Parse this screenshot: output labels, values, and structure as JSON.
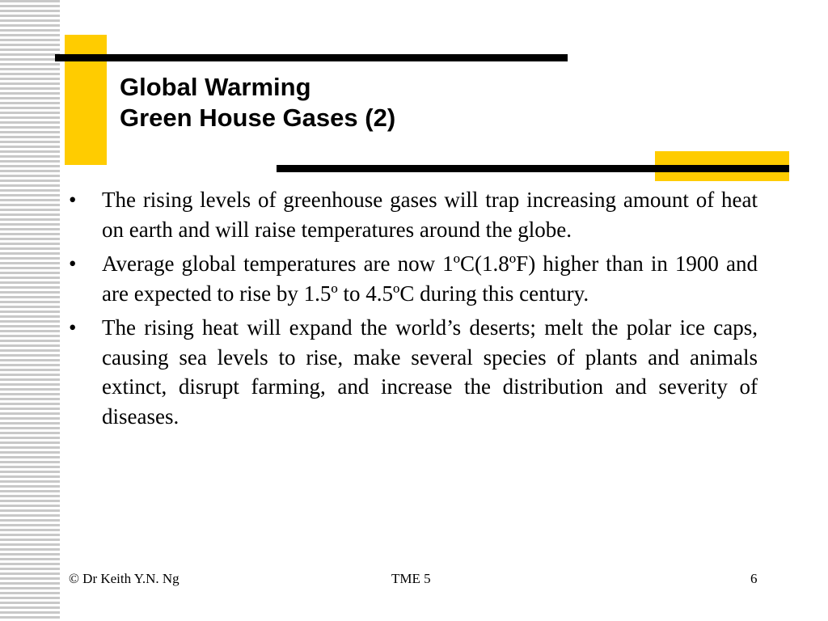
{
  "slide": {
    "title_lines": [
      "Global Warming",
      "Green House Gases (2)"
    ],
    "bullet_symbol": "•",
    "bullets": [
      "The rising levels of greenhouse gases will trap increasing amount of heat on earth and will raise temperatures around the globe.",
      "Average global temperatures are now 1ºC(1.8ºF) higher than in 1900 and are expected to rise by 1.5º to 4.5ºC during this century.",
      "The rising heat will expand the world’s deserts; melt the polar ice caps, causing sea levels to rise, make several species of plants and animals extinct,  disrupt farming, and increase the distribution and severity of diseases."
    ]
  },
  "footer": {
    "left": "© Dr Keith Y.N. Ng",
    "center": "TME 5",
    "right": "6"
  },
  "colors": {
    "accent_yellow": "#ffcc00",
    "rule_black": "#000000",
    "stripe_gray": "#c8c8c8"
  }
}
